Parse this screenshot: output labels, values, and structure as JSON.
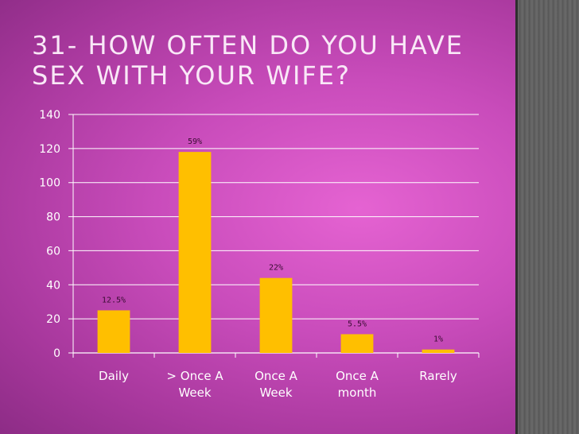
{
  "slide": {
    "title": "31- How often do you have sex with your wife?"
  },
  "chart_data": {
    "type": "bar",
    "categories": [
      [
        "Daily"
      ],
      [
        "> Once A",
        "Week"
      ],
      [
        "Once A",
        "Week"
      ],
      [
        "Once A",
        "month"
      ],
      [
        "Rarely"
      ]
    ],
    "values": [
      25,
      118,
      44,
      11,
      2
    ],
    "data_labels": [
      "12.5%",
      "59%",
      "22%",
      "5.5%",
      "1%"
    ],
    "yticks": [
      "0",
      "20",
      "40",
      "60",
      "80",
      "100",
      "120",
      "140"
    ],
    "ylim": [
      0,
      140
    ],
    "grid": true,
    "legend": "none",
    "bar_color": "#ffbf00",
    "title": "",
    "xlabel": "",
    "ylabel": ""
  }
}
